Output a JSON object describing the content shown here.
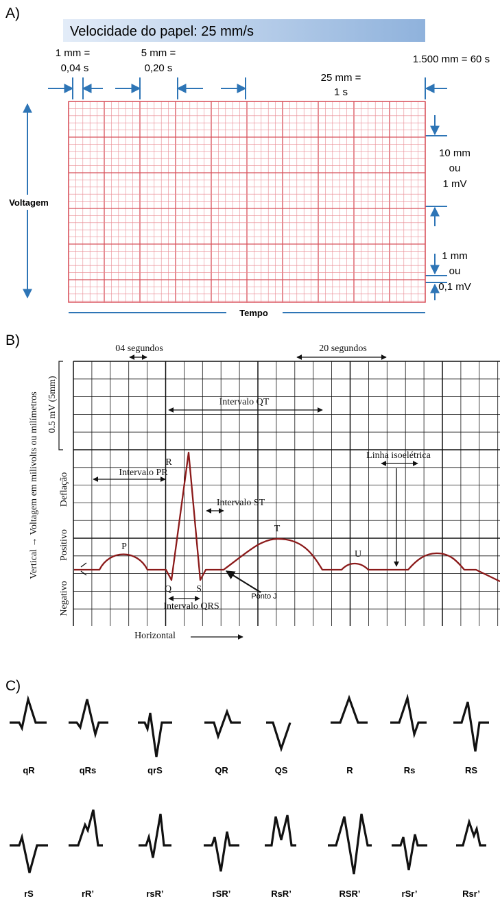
{
  "colors": {
    "grid_red": "#d8505a",
    "grid_red_light": "#e98a92",
    "arrow_blue": "#2e75b6",
    "banner_light": "#e3ecf8",
    "banner_dark": "#8fb2dc",
    "ecg_trace": "#8b1a1a",
    "qrs_black": "#111111"
  },
  "panel_a": {
    "label": "A)",
    "banner": "Velocidade do papel: 25 mm/s",
    "ann_1mm_top": "1 mm =",
    "ann_1mm_bottom": "0,04 s",
    "ann_5mm_top": "5 mm =",
    "ann_5mm_bottom": "0,20 s",
    "ann_25mm_top": "25 mm =",
    "ann_25mm_bottom": "1 s",
    "ann_1500mm": "1.500 mm = 60 s",
    "ann_10mm_top": "10 mm",
    "ann_10mm_mid": "ou",
    "ann_10mm_bottom": "1 mV",
    "ann_1mm_v_top": "1 mm",
    "ann_1mm_v_mid": "ou",
    "ann_1mm_v_bottom": "0,1 mV",
    "axis_voltage": "Voltagem",
    "axis_time": "Tempo"
  },
  "panel_b": {
    "label": "B)",
    "seg_04": "04 segundos",
    "seg_20": "20 segundos",
    "vertical_label": "Vertical → Voltagem em milivolts ou milímetros",
    "half_mv": "0.5 mV (5mm)",
    "deflection": "Deflação",
    "positive": "Positivo",
    "negative": "Negativo",
    "qt_interval": "Intervalo QT",
    "pr_interval": "Intervalo PR",
    "st_interval": "Intervalo ST",
    "qrs_interval": "Intervalo QRS",
    "isoelectric": "Linha isoelétrica",
    "j_point": "Ponto J",
    "horizontal": "Horizontal",
    "wave_p": "P",
    "wave_q": "Q",
    "wave_r": "R",
    "wave_s": "S",
    "wave_t": "T",
    "wave_u": "U"
  },
  "panel_c": {
    "label": "C)",
    "row1": [
      "qR",
      "qRs",
      "qrS",
      "QR",
      "QS",
      "R",
      "Rs",
      "RS"
    ],
    "row2": [
      "rS",
      "rR’",
      "rsR’",
      "rSR’",
      "RsR’",
      "RSR’",
      "rSr’",
      "Rsr’"
    ]
  }
}
